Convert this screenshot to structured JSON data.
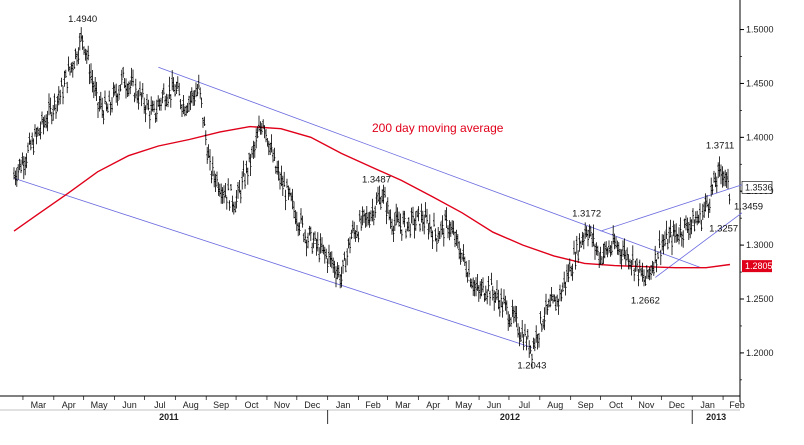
{
  "chart_data": {
    "type": "line",
    "style": "ohlc-bars",
    "title": "",
    "y_axis": {
      "side": "right",
      "range": [
        1.16,
        1.52
      ],
      "ticks": [
        "1.2000",
        "1.2500",
        "1.3000",
        "1.3500",
        "1.4000",
        "1.4500",
        "1.5000"
      ],
      "last_price_label": "1.3536",
      "ma_value_label": "1.2805"
    },
    "x_axis": {
      "months": [
        "Mar",
        "Apr",
        "May",
        "Jun",
        "Jul",
        "Aug",
        "Sep",
        "Oct",
        "Nov",
        "Dec",
        "Jan",
        "Feb",
        "Mar",
        "Apr",
        "May",
        "Jun",
        "Jul",
        "Aug",
        "Sep",
        "Oct",
        "Nov",
        "Dec",
        "Jan",
        "Feb"
      ],
      "years": [
        "2011",
        "2012",
        "2013"
      ]
    },
    "series": [
      {
        "kind": "price",
        "color": "#000000",
        "x": [
          "2011-02-20",
          "2011-03-05",
          "2011-03-20",
          "2011-04-10",
          "2011-04-30",
          "2011-05-15",
          "2011-05-25",
          "2011-06-10",
          "2011-06-25",
          "2011-07-10",
          "2011-07-20",
          "2011-08-01",
          "2011-08-10",
          "2011-08-25",
          "2011-09-05",
          "2011-09-20",
          "2011-10-01",
          "2011-10-20",
          "2011-10-28",
          "2011-11-10",
          "2011-11-25",
          "2011-12-10",
          "2011-12-25",
          "2012-01-05",
          "2012-01-15",
          "2012-01-25",
          "2012-02-10",
          "2012-02-25",
          "2012-03-05",
          "2012-03-20",
          "2012-04-05",
          "2012-04-20",
          "2012-05-01",
          "2012-05-15",
          "2012-05-31",
          "2012-06-10",
          "2012-06-25",
          "2012-07-10",
          "2012-07-24",
          "2012-08-05",
          "2012-08-20",
          "2012-09-05",
          "2012-09-17",
          "2012-09-30",
          "2012-10-15",
          "2012-10-30",
          "2012-11-15",
          "2012-11-30",
          "2012-12-15",
          "2012-12-30",
          "2013-01-10",
          "2013-01-25",
          "2013-02-01",
          "2013-02-08"
        ],
        "y": [
          1.365,
          1.385,
          1.41,
          1.445,
          1.494,
          1.43,
          1.425,
          1.455,
          1.44,
          1.42,
          1.44,
          1.445,
          1.43,
          1.445,
          1.37,
          1.35,
          1.34,
          1.39,
          1.418,
          1.37,
          1.34,
          1.31,
          1.295,
          1.285,
          1.27,
          1.31,
          1.325,
          1.348,
          1.322,
          1.318,
          1.325,
          1.31,
          1.32,
          1.29,
          1.255,
          1.262,
          1.245,
          1.225,
          1.204,
          1.235,
          1.25,
          1.29,
          1.317,
          1.29,
          1.3,
          1.29,
          1.2662,
          1.3,
          1.31,
          1.32,
          1.3257,
          1.36,
          1.3711,
          1.3459
        ]
      },
      {
        "kind": "moving-average",
        "name": "200 day moving average",
        "color": "#e0001a",
        "x": [
          "2011-02-20",
          "2011-03-15",
          "2011-04-15",
          "2011-05-15",
          "2011-06-15",
          "2011-07-15",
          "2011-08-15",
          "2011-09-15",
          "2011-10-15",
          "2011-11-15",
          "2011-12-15",
          "2012-01-15",
          "2012-02-15",
          "2012-03-15",
          "2012-04-15",
          "2012-05-15",
          "2012-06-15",
          "2012-07-15",
          "2012-08-15",
          "2012-09-15",
          "2012-10-15",
          "2012-11-15",
          "2012-12-15",
          "2013-01-15",
          "2013-02-08"
        ],
        "y": [
          1.313,
          1.328,
          1.348,
          1.368,
          1.383,
          1.392,
          1.398,
          1.405,
          1.41,
          1.408,
          1.4,
          1.385,
          1.372,
          1.36,
          1.345,
          1.33,
          1.312,
          1.3,
          1.29,
          1.283,
          1.281,
          1.28,
          1.279,
          1.279,
          1.282
        ]
      }
    ],
    "annotations": [
      {
        "text": "1.4940",
        "x": "2011-04-30",
        "y": 1.494
      },
      {
        "text": "1.3487",
        "x": "2012-02-25",
        "y": 1.3487
      },
      {
        "text": "1.3172",
        "x": "2012-09-17",
        "y": 1.3172
      },
      {
        "text": "1.2043",
        "x": "2012-07-24",
        "y": 1.2043
      },
      {
        "text": "1.2662",
        "x": "2012-11-15",
        "y": 1.2662
      },
      {
        "text": "1.3711",
        "x": "2013-02-01",
        "y": 1.3711
      },
      {
        "text": "1.3459",
        "x": "2013-02-08",
        "y": 1.3459
      },
      {
        "text": "1.3257",
        "x": "2013-01-10",
        "y": 1.3257
      },
      {
        "text": "200 day moving average",
        "x": "2012-01-01",
        "y": 1.405
      }
    ],
    "trendlines": [
      {
        "name": "upper-channel",
        "color": "#6a6ae0",
        "from": {
          "x": "2011-07-15",
          "y": 1.465
        },
        "to": {
          "x": "2013-01-10",
          "y": 1.279
        }
      },
      {
        "name": "lower-channel",
        "color": "#6a6ae0",
        "from": {
          "x": "2011-02-20",
          "y": 1.362
        },
        "to": {
          "x": "2012-07-24",
          "y": 1.205
        }
      },
      {
        "name": "upper-wedge",
        "color": "#6a6ae0",
        "from": {
          "x": "2012-10-01",
          "y": 1.313
        },
        "to": {
          "x": "2013-02-20",
          "y": 1.356
        }
      },
      {
        "name": "lower-wedge",
        "color": "#6a6ae0",
        "from": {
          "x": "2012-11-25",
          "y": 1.27
        },
        "to": {
          "x": "2013-02-20",
          "y": 1.33
        }
      }
    ],
    "grid": false,
    "legend": "none"
  }
}
